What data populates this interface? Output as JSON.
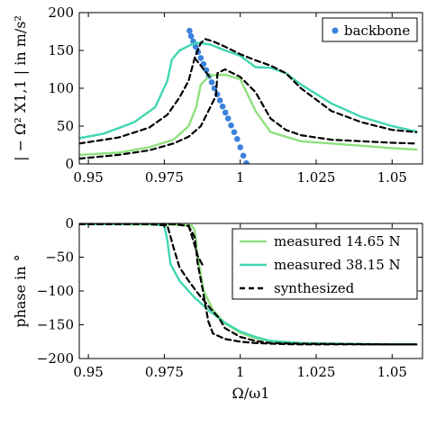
{
  "chart_data": [
    {
      "type": "line",
      "ylabel": "| − Ω² X1,1 | in m/s²",
      "xlim": [
        0.947,
        1.06
      ],
      "ylim": [
        0,
        200
      ],
      "xticks": [
        0.95,
        0.975,
        1,
        1.025,
        1.05
      ],
      "xtick_labels": [
        "0.95",
        "0.975",
        "1",
        "1.025",
        "1.05"
      ],
      "yticks": [
        0,
        50,
        100,
        150,
        200
      ],
      "ytick_labels": [
        "0",
        "50",
        "100",
        "150",
        "200"
      ],
      "grid": false,
      "legend": {
        "position": "top-right",
        "entries": [
          {
            "label": "backbone",
            "series": "backbone"
          }
        ]
      },
      "series": [
        {
          "name": "backbone",
          "style": "dots",
          "color": "#3b82dd",
          "x": [
            0.9833,
            0.9838,
            0.9845,
            0.9853,
            0.9861,
            0.987,
            0.9879,
            0.9888,
            0.9897,
            0.9906,
            0.9915,
            0.9924,
            0.9933,
            0.9942,
            0.9951,
            0.996,
            0.997,
            0.998,
            0.999,
            1.0,
            1.001,
            1.002
          ],
          "y": [
            176,
            169,
            162,
            155,
            148,
            140,
            132,
            124,
            116,
            108,
            100,
            92,
            84,
            76,
            68,
            60,
            51,
            42,
            33,
            22,
            11,
            1
          ]
        },
        {
          "name": "measured 14.65 N",
          "color": "#8fe07e",
          "x": [
            0.947,
            0.96,
            0.97,
            0.978,
            0.983,
            0.9855,
            0.987,
            0.99,
            0.995,
            1.0,
            1.005,
            1.01,
            1.02,
            1.03,
            1.04,
            1.05,
            1.058
          ],
          "y": [
            12,
            15,
            22,
            32,
            50,
            75,
            105,
            117,
            118,
            112,
            70,
            42,
            30,
            27,
            24,
            21,
            19
          ]
        },
        {
          "name": "measured 38.15 N",
          "color": "#40d6b0",
          "x": [
            0.947,
            0.955,
            0.965,
            0.972,
            0.976,
            0.9775,
            0.98,
            0.984,
            0.986,
            0.99,
            0.995,
            1.0,
            1.005,
            1.01,
            1.015,
            1.02,
            1.03,
            1.04,
            1.05,
            1.058
          ],
          "y": [
            34,
            40,
            55,
            75,
            110,
            138,
            150,
            158,
            160,
            158,
            150,
            143,
            128,
            127,
            120,
            105,
            80,
            62,
            50,
            43
          ]
        },
        {
          "name": "synthesized",
          "color": "#000000",
          "dash": "6,4",
          "x": [
            0.947,
            0.96,
            0.97,
            0.976,
            0.98,
            0.983,
            0.985,
            0.987,
            0.9885,
            0.991,
            0.995,
            1.0,
            1.005,
            1.01,
            1.015,
            1.02,
            1.03,
            1.04,
            1.05,
            1.058
          ],
          "y": [
            27,
            35,
            48,
            65,
            88,
            110,
            140,
            160,
            165,
            162,
            155,
            145,
            137,
            130,
            120,
            100,
            70,
            55,
            45,
            42
          ]
        },
        {
          "name": "synthesized",
          "color": "#000000",
          "dash": "6,4",
          "x": [
            0.947,
            0.96,
            0.97,
            0.978,
            0.983,
            0.987,
            0.9895,
            0.992,
            0.9925,
            0.995,
            1.0,
            1.005,
            1.01,
            1.015,
            1.02,
            1.03,
            1.04,
            1.05,
            1.058
          ],
          "y": [
            7,
            12,
            18,
            27,
            36,
            50,
            70,
            90,
            120,
            125,
            115,
            95,
            60,
            45,
            38,
            32,
            30,
            28,
            27
          ]
        },
        {
          "name": "synthesized",
          "color": "#000000",
          "dash": "6,4",
          "x": [
            0.985,
            0.988,
            0.9905
          ],
          "y": [
            140,
            125,
            112
          ]
        }
      ]
    },
    {
      "type": "line",
      "xlabel": "Ω/ω1",
      "ylabel": "phase in °",
      "xlim": [
        0.947,
        1.06
      ],
      "ylim": [
        -200,
        0
      ],
      "xticks": [
        0.95,
        0.975,
        1,
        1.025,
        1.05
      ],
      "xtick_labels": [
        "0.95",
        "0.975",
        "1",
        "1.025",
        "1.05"
      ],
      "yticks": [
        0,
        -50,
        -100,
        -150,
        -200
      ],
      "ytick_labels": [
        "0",
        "−50",
        "−100",
        "−150",
        "−200"
      ],
      "grid": false,
      "legend": {
        "position": "top-right",
        "entries": [
          {
            "label": "measured 14.65 N",
            "series": "measured 14.65 N"
          },
          {
            "label": "measured 38.15 N",
            "series": "measured 38.15 N"
          },
          {
            "label": "synthesized",
            "series": "synthesized"
          }
        ]
      },
      "series": [
        {
          "name": "measured 14.65 N",
          "color": "#8fe07e",
          "x": [
            0.947,
            0.98,
            0.984,
            0.985,
            0.986,
            0.988,
            0.991,
            0.995,
            1.0,
            1.005,
            1.01,
            1.02,
            1.03,
            1.05,
            1.058
          ],
          "y": [
            -1,
            -2,
            -3,
            -10,
            -50,
            -100,
            -128,
            -148,
            -162,
            -170,
            -174,
            -177,
            -178,
            -179,
            -179
          ]
        },
        {
          "name": "measured 38.15 N",
          "color": "#40d6b0",
          "x": [
            0.947,
            0.97,
            0.975,
            0.976,
            0.977,
            0.98,
            0.985,
            0.99,
            0.995,
            1.0,
            1.005,
            1.01,
            1.02,
            1.03,
            1.05,
            1.058
          ],
          "y": [
            -1,
            -1,
            -3,
            -25,
            -60,
            -85,
            -110,
            -130,
            -147,
            -160,
            -168,
            -174,
            -177,
            -178,
            -179,
            -179
          ]
        },
        {
          "name": "synthesized",
          "color": "#000000",
          "dash": "6,4",
          "x": [
            0.947,
            0.97,
            0.976,
            0.978,
            0.98,
            0.983,
            0.986,
            0.99,
            0.993,
            0.995,
            1.0,
            1.005,
            1.01,
            1.02,
            1.05,
            1.058
          ],
          "y": [
            -1,
            -1,
            -3,
            -35,
            -65,
            -85,
            -103,
            -125,
            -140,
            -155,
            -168,
            -174,
            -177,
            -178,
            -179,
            -179
          ]
        },
        {
          "name": "synthesized",
          "color": "#000000",
          "dash": "6,4",
          "x": [
            0.947,
            0.978,
            0.983,
            0.985,
            0.986,
            0.9875,
            0.9885,
            0.9895,
            0.991,
            0.995,
            1.0,
            1.005,
            1.01,
            1.02,
            1.05,
            1.058
          ],
          "y": [
            -1,
            -1,
            -4,
            -20,
            -60,
            -95,
            -120,
            -145,
            -163,
            -171,
            -175,
            -177,
            -178,
            -179,
            -179,
            -179
          ]
        },
        {
          "name": "synthesized",
          "color": "#000000",
          "dash": "6,4",
          "x": [
            0.983,
            0.9845,
            0.986,
            0.988
          ],
          "y": [
            -3,
            -25,
            -48,
            -65
          ]
        }
      ]
    }
  ]
}
